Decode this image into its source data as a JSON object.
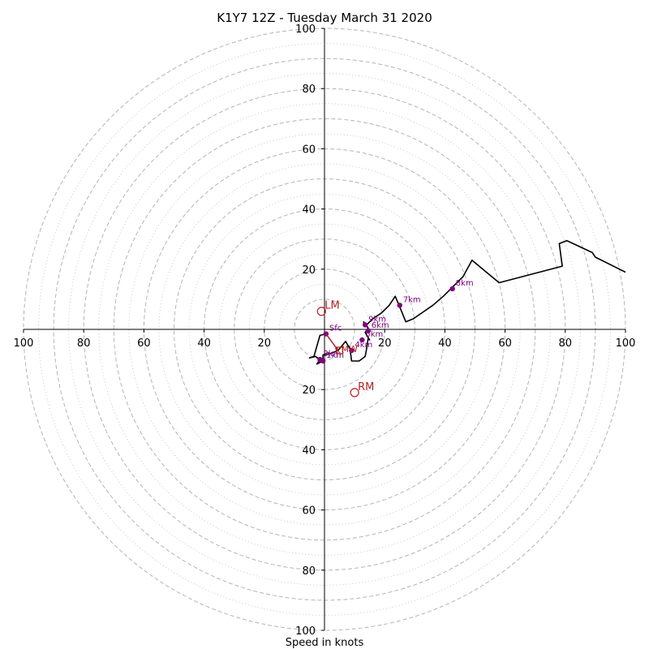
{
  "chart_data": {
    "type": "line",
    "subtype": "hodograph",
    "title": "K1Y7 12Z - Tuesday March 31 2020",
    "xlabel": "Speed in knots",
    "xlim": [
      -100,
      100
    ],
    "ylim": [
      -100,
      100
    ],
    "rings_dashed": [
      10,
      20,
      30,
      40,
      50,
      60,
      70,
      80,
      90,
      100
    ],
    "rings_dotted": [
      15,
      25,
      35,
      45,
      55,
      65,
      75,
      85,
      95
    ],
    "x_ticks": [
      {
        "v": -100,
        "label": "100"
      },
      {
        "v": -80,
        "label": "80"
      },
      {
        "v": -60,
        "label": "60"
      },
      {
        "v": -40,
        "label": "40"
      },
      {
        "v": -20,
        "label": "20"
      },
      {
        "v": 20,
        "label": "20"
      },
      {
        "v": 40,
        "label": "40"
      },
      {
        "v": 60,
        "label": "60"
      },
      {
        "v": 80,
        "label": "80"
      },
      {
        "v": 100,
        "label": "100"
      }
    ],
    "y_ticks": [
      {
        "v": 100,
        "label": "100"
      },
      {
        "v": 80,
        "label": "80"
      },
      {
        "v": 60,
        "label": "60"
      },
      {
        "v": 40,
        "label": "40"
      },
      {
        "v": 20,
        "label": "20"
      },
      {
        "v": -20,
        "label": "20"
      },
      {
        "v": -40,
        "label": "40"
      },
      {
        "v": -60,
        "label": "60"
      },
      {
        "v": -80,
        "label": "80"
      },
      {
        "v": -100,
        "label": "100"
      }
    ],
    "trace": {
      "color": "#000000",
      "points": [
        [
          0.5,
          -1.5
        ],
        [
          -1.5,
          -2
        ],
        [
          -3.5,
          -9
        ],
        [
          -5,
          -9.5
        ],
        [
          -3,
          -9
        ],
        [
          -1.5,
          -10
        ],
        [
          -2.5,
          -11.5
        ],
        [
          -0.5,
          -10.5
        ],
        [
          -0.5,
          -8.5
        ],
        [
          2,
          -8
        ],
        [
          4.5,
          -7
        ],
        [
          7,
          -4
        ],
        [
          8.5,
          -6.5
        ],
        [
          9,
          -10.5
        ],
        [
          11.5,
          -10.5
        ],
        [
          13.5,
          -9
        ],
        [
          14,
          -6.5
        ],
        [
          14.5,
          -3
        ],
        [
          15,
          -3.5
        ],
        [
          13.5,
          -1
        ],
        [
          14.5,
          0.5
        ],
        [
          13,
          2.5
        ],
        [
          13.5,
          1
        ],
        [
          16,
          3.5
        ],
        [
          19,
          5.5
        ],
        [
          21.5,
          8
        ],
        [
          23.5,
          11
        ],
        [
          26,
          5
        ],
        [
          27,
          2.5
        ],
        [
          29.5,
          3.5
        ],
        [
          36,
          8
        ],
        [
          39.5,
          11
        ],
        [
          42,
          13.5
        ],
        [
          46,
          17.5
        ],
        [
          49,
          23
        ],
        [
          58,
          15.5
        ],
        [
          79,
          21
        ],
        [
          78,
          28.5
        ],
        [
          80.5,
          29.5
        ],
        [
          89,
          25.5
        ],
        [
          90,
          24
        ],
        [
          100,
          19
        ]
      ]
    },
    "heights": {
      "color": "#800080",
      "points": [
        {
          "label": "Sfc",
          "u": 0.5,
          "v": -1.5
        },
        {
          "label": "1km",
          "u": -0.5,
          "v": -10.5
        },
        {
          "label": "3km",
          "u": -1.5,
          "v": -10
        },
        {
          "label": "4km",
          "u": 9,
          "v": -7
        },
        {
          "label": "5km",
          "u": 12.5,
          "v": -3.5
        },
        {
          "label": "6km",
          "u": 14.5,
          "v": -0.5
        },
        {
          "label": "7km",
          "u": 25,
          "v": 8
        },
        {
          "label": "8km",
          "u": 42.5,
          "v": 13.5
        },
        {
          "label": "9km",
          "u": 13.5,
          "v": 1.5
        }
      ]
    },
    "motion": {
      "color": "#b22222",
      "lm": {
        "label": "LM",
        "u": -1,
        "v": 6
      },
      "rm": {
        "label": "RM",
        "u": 10,
        "v": -21
      },
      "mw": {
        "label": "MW",
        "u": 5,
        "v": -7
      }
    }
  }
}
